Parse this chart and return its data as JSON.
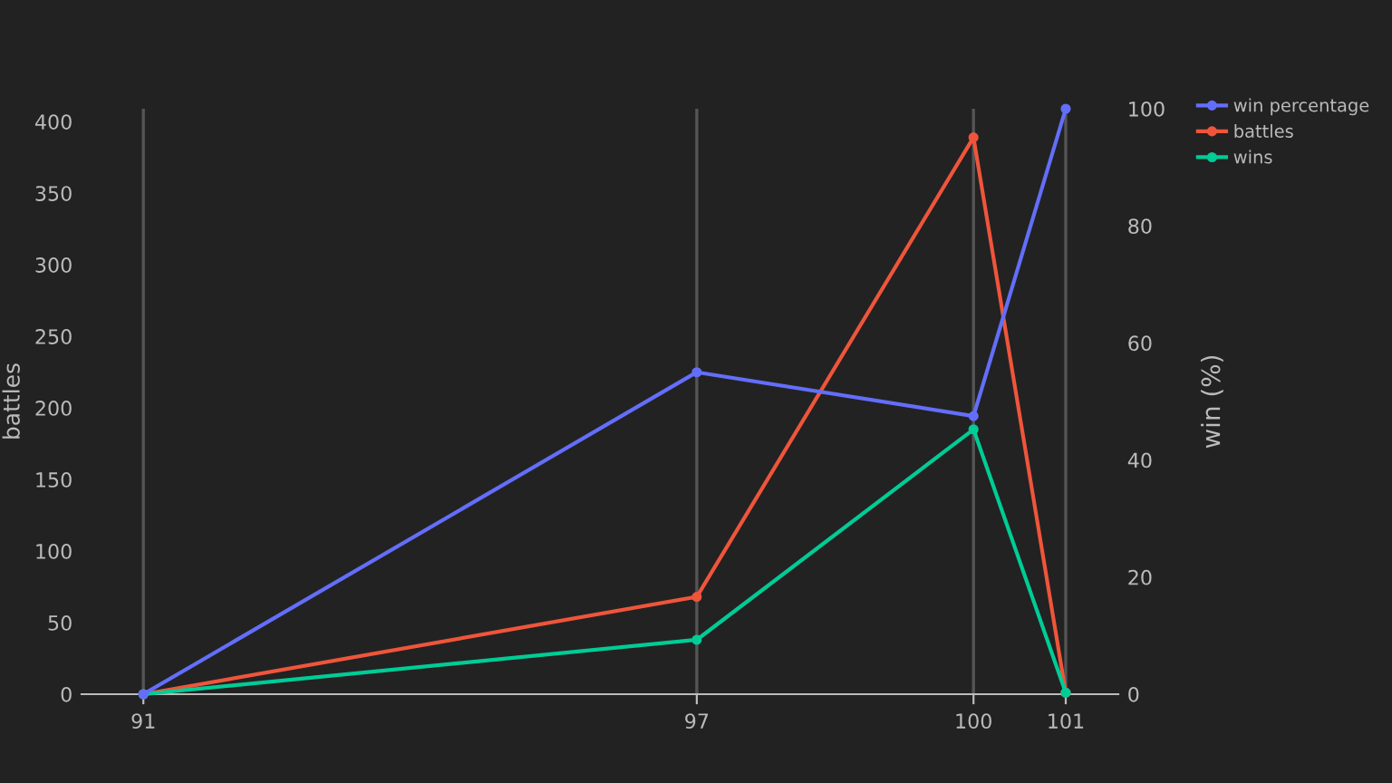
{
  "chart_data": {
    "type": "line",
    "ylabel": "battles",
    "y2label": "win (%)",
    "xlim": [
      90.33,
      101.57
    ],
    "xticks": [
      91,
      97,
      100,
      101
    ],
    "ylim": [
      0,
      409
    ],
    "yticks": [
      0,
      50,
      100,
      150,
      200,
      250,
      300,
      350,
      400
    ],
    "y2lim": [
      0,
      100
    ],
    "y2ticks": [
      0,
      20,
      40,
      60,
      80,
      100
    ],
    "grid": "x",
    "legend": "top right",
    "marker": "circle",
    "line_style": "solid",
    "series": [
      {
        "name": "win percentage",
        "color": "#636efa",
        "axis": "y2",
        "x": [
          91,
          97,
          100,
          101
        ],
        "values": [
          0,
          55,
          47.5,
          100
        ]
      },
      {
        "name": "battles",
        "color": "#ef553b",
        "x": [
          91,
          97,
          100,
          101
        ],
        "values": [
          0,
          68,
          389,
          1
        ]
      },
      {
        "name": "wins",
        "color": "#00cc96",
        "x": [
          91,
          97,
          100,
          101
        ],
        "values": [
          0,
          38,
          185,
          1
        ]
      }
    ]
  }
}
